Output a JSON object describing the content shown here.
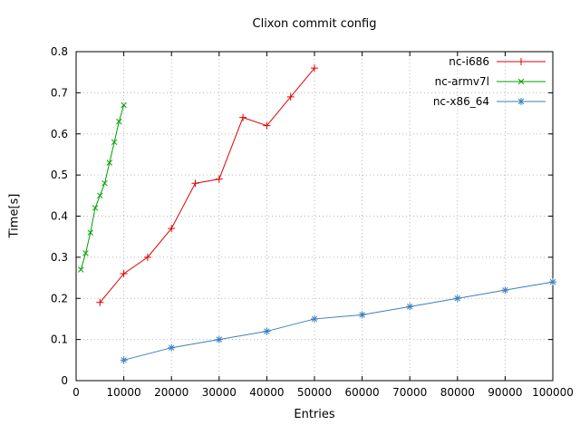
{
  "chart_data": {
    "type": "line",
    "title": "Clixon commit config",
    "xlabel": "Entries",
    "ylabel": "Time[s]",
    "xlim": [
      0,
      100000
    ],
    "ylim": [
      0,
      0.8
    ],
    "x_ticks": [
      0,
      10000,
      20000,
      30000,
      40000,
      50000,
      60000,
      70000,
      80000,
      90000,
      100000
    ],
    "x_tick_labels": [
      "0",
      "10000",
      "20000",
      "30000",
      "40000",
      "50000",
      "60000",
      "70000",
      "80000",
      "90000",
      "100000"
    ],
    "y_ticks": [
      0,
      0.1,
      0.2,
      0.3,
      0.4,
      0.5,
      0.6,
      0.7,
      0.8
    ],
    "y_tick_labels": [
      "0",
      "0.1",
      "0.2",
      "0.3",
      "0.4",
      "0.5",
      "0.6",
      "0.7",
      "0.8"
    ],
    "grid": true,
    "legend_position": "top-right-inside",
    "colors": {
      "grid": "#b8b8b8",
      "border": "#000000",
      "text": "#000000"
    },
    "series": [
      {
        "name": "nc-i686",
        "color": "#e00000",
        "marker": "plus",
        "x": [
          5000,
          10000,
          15000,
          20000,
          25000,
          30000,
          35000,
          40000,
          45000,
          50000
        ],
        "y": [
          0.19,
          0.26,
          0.3,
          0.37,
          0.48,
          0.49,
          0.64,
          0.62,
          0.69,
          0.76
        ]
      },
      {
        "name": "nc-armv7l",
        "color": "#00a000",
        "marker": "x",
        "x": [
          1000,
          2000,
          3000,
          4000,
          5000,
          6000,
          7000,
          8000,
          9000,
          10000
        ],
        "y": [
          0.27,
          0.31,
          0.36,
          0.42,
          0.45,
          0.48,
          0.53,
          0.58,
          0.63,
          0.67
        ]
      },
      {
        "name": "nc-x86_64",
        "color": "#3a7ebf",
        "marker": "asterisk",
        "x": [
          10000,
          20000,
          30000,
          40000,
          50000,
          60000,
          70000,
          80000,
          90000,
          100000
        ],
        "y": [
          0.05,
          0.08,
          0.1,
          0.12,
          0.15,
          0.16,
          0.18,
          0.2,
          0.22,
          0.24
        ]
      }
    ]
  }
}
